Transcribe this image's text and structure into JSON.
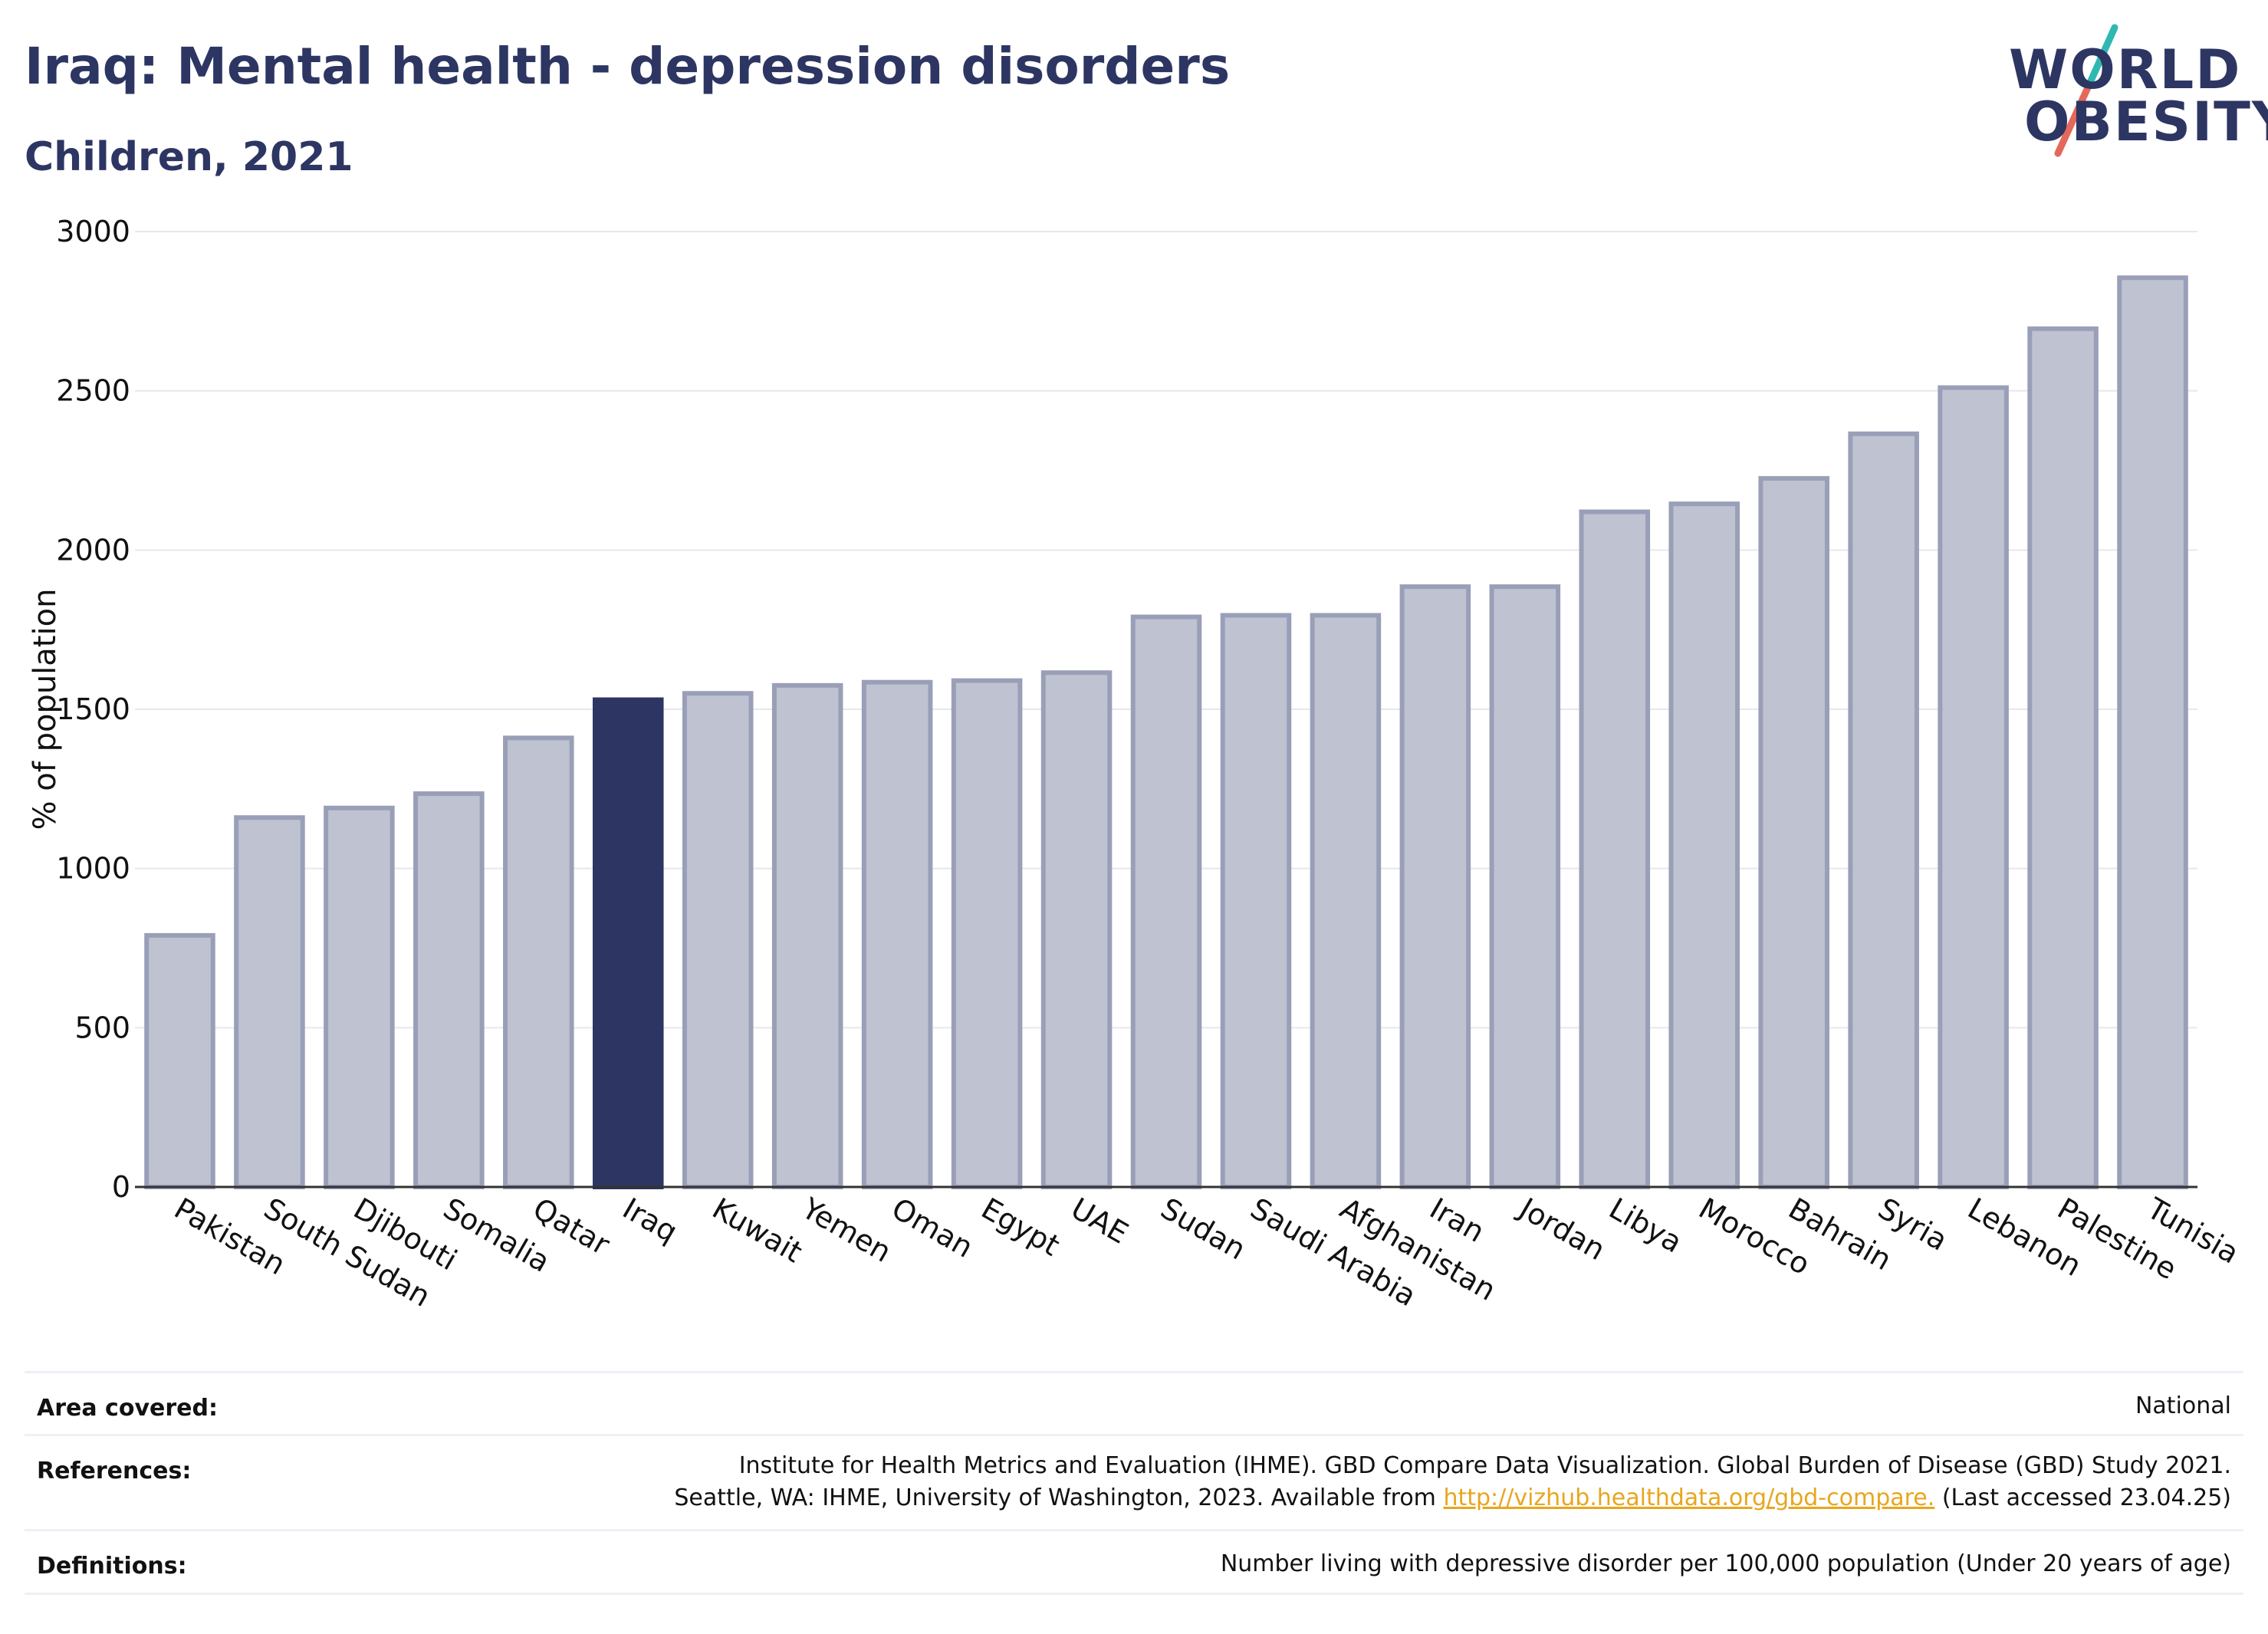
{
  "header": {
    "title": "Iraq: Mental health - depression disorders",
    "subtitle": "Children, 2021"
  },
  "logo": {
    "line1": "WORLD",
    "line2": "OBESITY",
    "colors": {
      "text": "#2d3662",
      "slash_top": "#2fb8b2",
      "slash_bottom": "#e5685a"
    }
  },
  "chart_data": {
    "type": "bar",
    "ylabel": "% of population",
    "xlabel": "",
    "ylim": [
      0,
      3000
    ],
    "yticks": [
      0,
      500,
      1000,
      1500,
      2000,
      2500,
      3000
    ],
    "grid": true,
    "highlight": "Iraq",
    "colors": {
      "bar": "#bfc2d0",
      "bar_edge": "#9a9fb8",
      "highlight": "#2d3662"
    },
    "categories": [
      "Pakistan",
      "South Sudan",
      "Djibouti",
      "Somalia",
      "Qatar",
      "Iraq",
      "Kuwait",
      "Yemen",
      "Oman",
      "Egypt",
      "UAE",
      "Sudan",
      "Saudi Arabia",
      "Afghanistan",
      "Iran",
      "Jordan",
      "Libya",
      "Morocco",
      "Bahrain",
      "Syria",
      "Lebanon",
      "Palestine",
      "Tunisia"
    ],
    "values": [
      790,
      1160,
      1190,
      1235,
      1410,
      1530,
      1550,
      1575,
      1585,
      1590,
      1615,
      1790,
      1795,
      1795,
      1885,
      1885,
      2120,
      2145,
      2225,
      2365,
      2510,
      2695,
      2855
    ]
  },
  "info": {
    "area_label": "Area covered:",
    "area_value": "National",
    "references_label": "References:",
    "references_line1": "Institute for Health Metrics and Evaluation (IHME). GBD Compare Data Visualization. Global Burden of Disease (GBD) Study 2021.",
    "references_line2_pre": "Seattle, WA: IHME, University of Washington, 2023. Available from ",
    "references_link": "http://vizhub.healthdata.org/gbd-compare.",
    "references_line2_post": " (Last accessed 23.04.25)",
    "definitions_label": "Definitions:",
    "definitions_value": "Number living with depressive disorder per 100,000 population (Under 20 years of age)"
  }
}
